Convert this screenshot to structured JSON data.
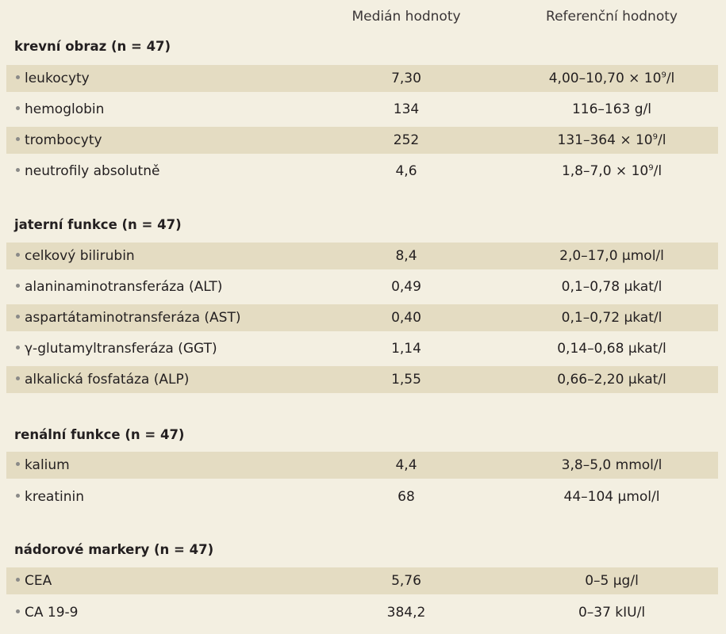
{
  "header": {
    "col1": "",
    "col2": "Medián hodnoty",
    "col3": "Referenční hodnoty"
  },
  "sections": [
    {
      "title": "krevní obraz (n = 47)",
      "rows": [
        {
          "name": "leukocyty",
          "median": "7,30",
          "ref_prefix": "4,00–10,70 × 10",
          "ref_sup": "9",
          "ref_suffix": "/l"
        },
        {
          "name": "hemoglobin",
          "median": "134",
          "ref_prefix": "116–163 g/l",
          "ref_sup": "",
          "ref_suffix": ""
        },
        {
          "name": "trombocyty",
          "median": "252",
          "ref_prefix": "131–364 × 10",
          "ref_sup": "9",
          "ref_suffix": "/l"
        },
        {
          "name": "neutrofily absolutně",
          "median": "4,6",
          "ref_prefix": "1,8–7,0 × 10",
          "ref_sup": "9",
          "ref_suffix": "/l"
        }
      ]
    },
    {
      "title": "jaterní funkce (n = 47)",
      "rows": [
        {
          "name": "celkový bilirubin",
          "median": "8,4",
          "ref_prefix": "2,0–17,0 µmol/l",
          "ref_sup": "",
          "ref_suffix": ""
        },
        {
          "name": "alaninaminotransferáza (ALT)",
          "median": "0,49",
          "ref_prefix": "0,1–0,78 µkat/l",
          "ref_sup": "",
          "ref_suffix": ""
        },
        {
          "name": "aspartátaminotransferáza (AST)",
          "median": "0,40",
          "ref_prefix": "0,1–0,72 µkat/l",
          "ref_sup": "",
          "ref_suffix": ""
        },
        {
          "name": "γ-glutamyltransferáza (GGT)",
          "median": "1,14",
          "ref_prefix": "0,14–0,68 µkat/l",
          "ref_sup": "",
          "ref_suffix": ""
        },
        {
          "name": "alkalická fosfatáza (ALP)",
          "median": "1,55",
          "ref_prefix": "0,66–2,20 µkat/l",
          "ref_sup": "",
          "ref_suffix": ""
        }
      ]
    },
    {
      "title": "renální funkce (n = 47)",
      "rows": [
        {
          "name": "kalium",
          "median": "4,4",
          "ref_prefix": "3,8–5,0 mmol/l",
          "ref_sup": "",
          "ref_suffix": ""
        },
        {
          "name": "kreatinin",
          "median": "68",
          "ref_prefix": "44–104 µmol/l",
          "ref_sup": "",
          "ref_suffix": ""
        }
      ]
    },
    {
      "title": "nádorové markery (n = 47)",
      "rows": [
        {
          "name": "CEA",
          "median": "5,76",
          "ref_prefix": "0–5 µg/l",
          "ref_sup": "",
          "ref_suffix": ""
        },
        {
          "name": "CA 19-9",
          "median": "384,2",
          "ref_prefix": "0–37 kIU/l",
          "ref_sup": "",
          "ref_suffix": ""
        }
      ]
    }
  ]
}
